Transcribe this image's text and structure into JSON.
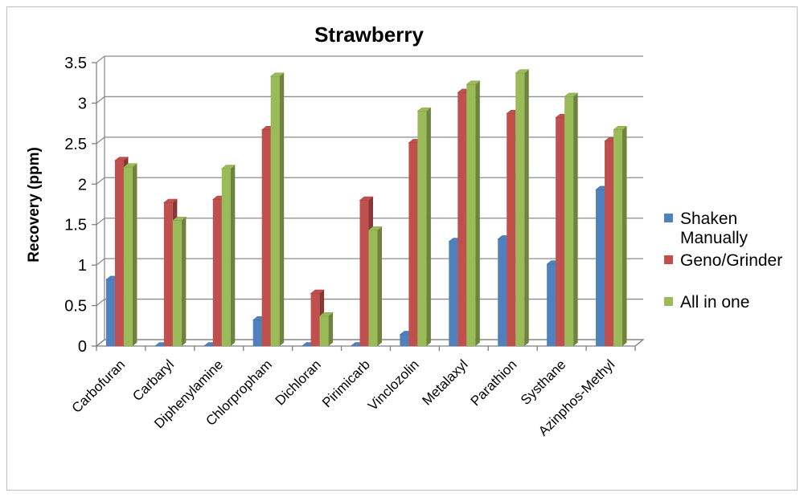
{
  "chart_data": {
    "type": "bar",
    "title": "Strawberry",
    "xlabel": "",
    "ylabel": "Recovery (ppm)",
    "ylim": [
      0,
      3.5
    ],
    "yticks": [
      "0",
      "0.5",
      "1",
      "1.5",
      "2",
      "2.5",
      "3",
      "3.5"
    ],
    "grid": true,
    "legend_position": "right",
    "categories": [
      "Carbofuran",
      "Carbaryl",
      "Diphenylamine",
      "Chlorpropham",
      "Dichloran",
      "Pirimicarb",
      "Vinclozolin",
      "Metalaxyl",
      "Parathion",
      "Systhane",
      "Azinphos-Methyl"
    ],
    "series": [
      {
        "name": "Shaken Manually",
        "color": "#4f81bd",
        "values": [
          0.82,
          0.0,
          0.0,
          0.32,
          0.0,
          0.0,
          0.14,
          1.29,
          1.32,
          1.01,
          1.93
        ]
      },
      {
        "name": "Geno/Grinder",
        "color": "#c0504d",
        "values": [
          2.29,
          1.77,
          1.81,
          2.67,
          0.65,
          1.8,
          2.51,
          3.13,
          2.87,
          2.82,
          2.53
        ]
      },
      {
        "name": "All in one",
        "color": "#9bbb59",
        "values": [
          2.21,
          1.55,
          2.19,
          3.33,
          0.37,
          1.43,
          2.9,
          3.23,
          3.37,
          3.08,
          2.67
        ]
      }
    ]
  }
}
